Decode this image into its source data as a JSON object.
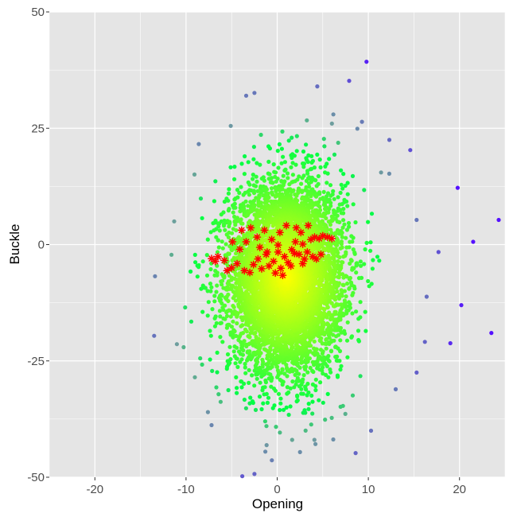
{
  "chart_data": {
    "type": "scatter",
    "xlabel": "Opening",
    "ylabel": "Buckle",
    "xlim": [
      -25,
      25
    ],
    "ylim": [
      -50,
      50
    ],
    "x_ticks": [
      -20,
      -10,
      0,
      10,
      20
    ],
    "y_ticks": [
      -50,
      -25,
      0,
      25,
      50
    ],
    "grid": true,
    "legend": "none",
    "colors": {
      "panel_background": "#e5e5e5",
      "grid": "#ffffff",
      "center": "#ffff00",
      "mid": "#00ff44",
      "outer": "#6e9e9e",
      "extreme": "#5511ff",
      "highlight": "#ff0000"
    },
    "series": [
      {
        "marker": "circle",
        "color_scale": "yellow (center) to green to gray-blue to purple (outliers)",
        "cloud": {
          "count": 6000,
          "center": [
            1.0,
            -7.0
          ],
          "sd": [
            3.9,
            12.0
          ],
          "x_range": [
            -9,
            11
          ],
          "y_range": [
            -35,
            22
          ]
        },
        "points": [
          [
            9.8,
            39.3
          ],
          [
            -2.5,
            -49.3
          ],
          [
            24.3,
            5.3
          ],
          [
            23.5,
            -19.0
          ],
          [
            21.5,
            0.6
          ],
          [
            20.2,
            -13.0
          ],
          [
            19.8,
            12.2
          ],
          [
            19.0,
            -21.2
          ],
          [
            17.7,
            -1.6
          ],
          [
            16.2,
            -20.9
          ],
          [
            15.3,
            -27.5
          ],
          [
            16.4,
            -11.2
          ],
          [
            -13.4,
            -6.8
          ],
          [
            -13.5,
            -19.6
          ],
          [
            -11.0,
            -21.4
          ],
          [
            -3.4,
            32.0
          ],
          [
            -2.5,
            32.6
          ],
          [
            4.4,
            34.0
          ],
          [
            7.9,
            35.2
          ],
          [
            9.3,
            26.4
          ],
          [
            -8.6,
            21.6
          ],
          [
            -7.6,
            -36.0
          ],
          [
            -7.2,
            -38.8
          ],
          [
            8.6,
            -44.8
          ],
          [
            10.3,
            -40.0
          ],
          [
            -1.3,
            -44.5
          ],
          [
            2.5,
            -44.6
          ],
          [
            14.6,
            20.3
          ],
          [
            13.0,
            -31.1
          ],
          [
            -10.1,
            -13.5
          ],
          [
            15.3,
            5.3
          ],
          [
            -5.1,
            25.5
          ],
          [
            6.0,
            26.0
          ],
          [
            8.8,
            24.9
          ],
          [
            12.3,
            22.5
          ],
          [
            0.3,
            -40.4
          ],
          [
            -11.3,
            5.0
          ],
          [
            -6.2,
            -33.8
          ],
          [
            -9.5,
            -5.8
          ],
          [
            11.4,
            15.5
          ]
        ]
      },
      {
        "marker": "asterisk",
        "color": "#ff0000",
        "points": [
          [
            -7.2,
            -3.0
          ],
          [
            -6.5,
            -2.6
          ],
          [
            -5.8,
            -3.4
          ],
          [
            -5.0,
            -5.0
          ],
          [
            -4.4,
            -4.1
          ],
          [
            -4.1,
            -1.0
          ],
          [
            -3.6,
            -5.6
          ],
          [
            -3.0,
            -6.0
          ],
          [
            -2.6,
            -4.3
          ],
          [
            -2.1,
            -3.1
          ],
          [
            -1.7,
            -5.2
          ],
          [
            -1.2,
            -2.1
          ],
          [
            -0.9,
            -4.6
          ],
          [
            -0.4,
            -3.6
          ],
          [
            0.1,
            -1.6
          ],
          [
            0.4,
            -5.1
          ],
          [
            0.8,
            -2.6
          ],
          [
            1.2,
            -3.9
          ],
          [
            1.6,
            -1.1
          ],
          [
            2.0,
            0.6
          ],
          [
            2.4,
            -2.1
          ],
          [
            2.8,
            0.1
          ],
          [
            3.3,
            -1.6
          ],
          [
            3.7,
            1.1
          ],
          [
            4.1,
            1.6
          ],
          [
            4.6,
            1.3
          ],
          [
            5.0,
            1.9
          ],
          [
            5.5,
            1.6
          ],
          [
            6.0,
            1.3
          ],
          [
            -3.4,
            0.6
          ],
          [
            -2.2,
            1.6
          ],
          [
            -1.4,
            3.1
          ],
          [
            0.3,
            2.6
          ],
          [
            1.0,
            4.1
          ],
          [
            2.1,
            3.6
          ],
          [
            2.6,
            2.6
          ],
          [
            -0.6,
            1.1
          ],
          [
            -2.9,
            3.6
          ],
          [
            0.6,
            -6.6
          ],
          [
            1.5,
            -4.6
          ],
          [
            3.0,
            -3.1
          ],
          [
            3.9,
            -2.6
          ],
          [
            4.8,
            -2.1
          ],
          [
            -5.5,
            -5.6
          ],
          [
            -4.9,
            0.6
          ],
          [
            -1.9,
            -0.6
          ],
          [
            0.1,
            -0.1
          ],
          [
            1.9,
            -1.9
          ],
          [
            2.8,
            -4.1
          ],
          [
            4.3,
            -3.1
          ],
          [
            -0.2,
            -6.1
          ],
          [
            -1.1,
            -1.6
          ],
          [
            -6.8,
            -3.6
          ],
          [
            -3.9,
            3.1
          ],
          [
            3.4,
            4.1
          ]
        ]
      }
    ]
  }
}
